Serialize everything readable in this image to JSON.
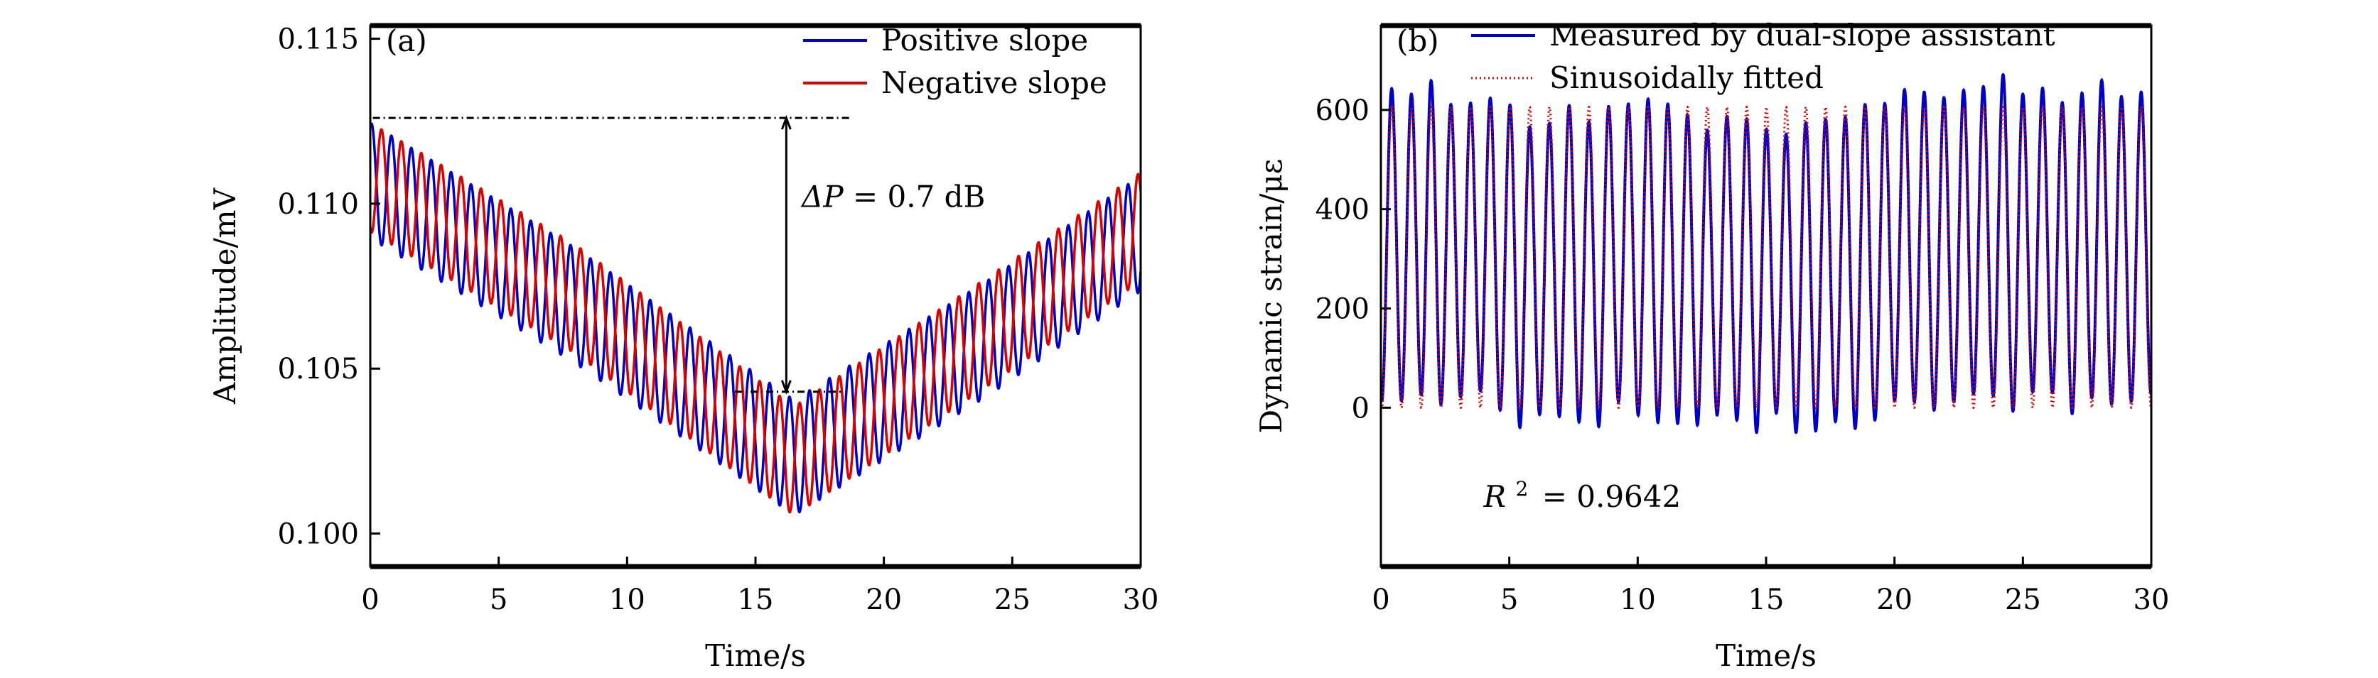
{
  "chart_data": [
    {
      "panel_label": "(a)",
      "type": "line",
      "title": "",
      "xlabel": "Time/s",
      "ylabel": "Amplitude/mV",
      "xlim": [
        0,
        30
      ],
      "ylim": [
        0.099,
        0.1154
      ],
      "xticks": [
        0,
        5,
        10,
        15,
        20,
        25,
        30
      ],
      "xtick_labels": [
        "0",
        "5",
        "10",
        "15",
        "20",
        "25",
        "30"
      ],
      "yticks": [
        0.1,
        0.105,
        0.11,
        0.115
      ],
      "ytick_labels": [
        "0.100",
        "0.105",
        "0.110",
        "0.115"
      ],
      "grid": false,
      "legend_position": "top-right",
      "oscillation_frequency_hz": 1.29,
      "series": [
        {
          "name": "Positive slope",
          "color": "#0000cc",
          "style": "solid",
          "oscillation_amplitude": 0.00175,
          "phase_offset_cycles": 0.0,
          "envelope_center": {
            "t": [
              0,
              8,
              16.5,
              24,
              30
            ],
            "v": [
              0.1107,
              0.1069,
              0.1023,
              0.1059,
              0.1091
            ]
          }
        },
        {
          "name": "Negative slope",
          "color": "#dd0000",
          "style": "solid",
          "oscillation_amplitude": 0.00165,
          "phase_offset_cycles": 0.5,
          "envelope_center": {
            "t": [
              0,
              8,
              16.5,
              24,
              30
            ],
            "v": [
              0.1108,
              0.1071,
              0.1022,
              0.1061,
              0.1093
            ]
          }
        }
      ],
      "annotations": {
        "upper_reference_line": {
          "value": 0.1126,
          "t_start": 0.1,
          "t_end": 18.7,
          "style": "dash-dot"
        },
        "lower_reference_line": {
          "value": 0.1043,
          "t_start": 14.2,
          "t_end": 18.4,
          "style": "dash-dot"
        },
        "double_arrow": {
          "t": 16.2,
          "from": 0.1043,
          "to": 0.1126
        },
        "delta_label_symbol": "ΔP",
        "delta_label_value": "= 0.7 dB",
        "delta_label_position": {
          "t": 16.8,
          "v": 0.1099
        }
      }
    },
    {
      "panel_label": "(b)",
      "type": "line",
      "title": "",
      "xlabel": "Time/s",
      "ylabel": "Dynamic strain/με",
      "xlim": [
        0,
        30
      ],
      "ylim": [
        -320,
        770
      ],
      "xticks": [
        0,
        5,
        10,
        15,
        20,
        25,
        30
      ],
      "xtick_labels": [
        "0",
        "5",
        "10",
        "15",
        "20",
        "25",
        "30"
      ],
      "yticks": [
        0,
        200,
        400,
        600
      ],
      "ytick_labels": [
        "0",
        "200",
        "400",
        "600"
      ],
      "grid": false,
      "legend_position": "top",
      "frequency_hz": 1.302,
      "first_peak_time_s": 0.42,
      "series": [
        {
          "name": "Measured by dual-slope assistant",
          "color": "#0000cc",
          "style": "solid",
          "cycle_peaks": [
            643,
            632,
            659,
            611,
            614,
            624,
            610,
            566,
            573,
            609,
            576,
            607,
            612,
            622,
            612,
            590,
            559,
            587,
            582,
            561,
            551,
            574,
            581,
            585,
            611,
            613,
            641,
            636,
            625,
            640,
            647,
            671,
            632,
            644,
            615,
            634,
            660,
            627,
            636
          ],
          "cycle_troughs": [
            14,
            26,
            7,
            22,
            34,
            -5,
            -40,
            -14,
            -18,
            -29,
            -38,
            12,
            -15,
            -30,
            -32,
            -35,
            -15,
            -25,
            -50,
            -11,
            -50,
            -47,
            -28,
            -42,
            -25,
            14,
            12,
            -5,
            12,
            28,
            24,
            -7,
            32,
            30,
            -12,
            20,
            7,
            13,
            28
          ]
        },
        {
          "name": "Sinusoidally fitted",
          "color": "#dd0000",
          "style": "dotted",
          "offset": 303,
          "amplitude": 303
        }
      ],
      "annotations": {
        "r2_symbol": "R",
        "r2_exponent": "2",
        "r2_text": "= 0.9642",
        "r2_position": {
          "t": 4.0,
          "v": -200
        }
      }
    }
  ]
}
